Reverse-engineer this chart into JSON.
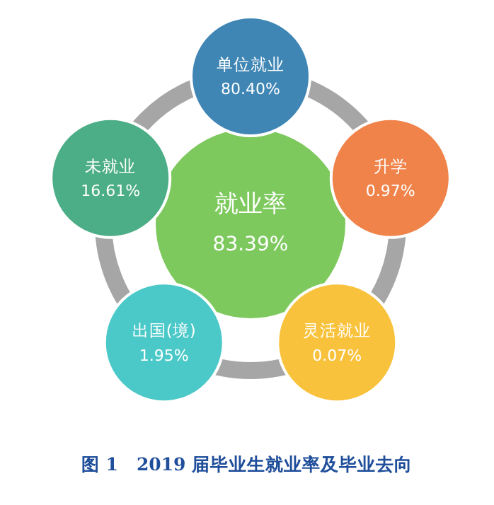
{
  "chart_data": {
    "type": "other",
    "title": "图 1　2019 届毕业生就业率及毕业去向",
    "categories": [
      "就业率",
      "单位就业",
      "升学",
      "灵活就业",
      "出国(境)",
      "未就业"
    ],
    "values": [
      83.39,
      80.4,
      0.97,
      0.07,
      1.95,
      16.61
    ],
    "value_labels": [
      "83.39%",
      "80.40%",
      "0.97%",
      "0.07%",
      "1.95%",
      "16.61%"
    ],
    "colors": [
      "#7dc95e",
      "#3f86b5",
      "#f0834a",
      "#f9c23c",
      "#4bc8c8",
      "#4cae86"
    ]
  }
}
